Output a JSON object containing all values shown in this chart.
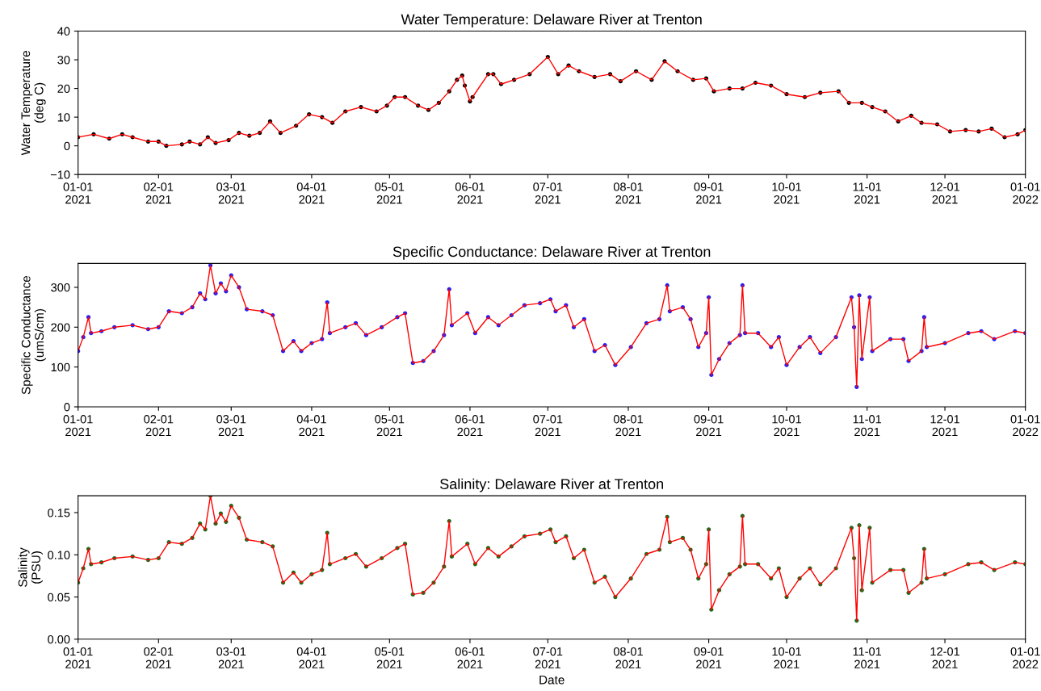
{
  "chart_data": [
    {
      "type": "line",
      "title": "Water Temperature: Delaware River at Trenton",
      "ylabel": "Water Temperature\n(deg C)",
      "ylim": [
        -10,
        40
      ],
      "yticks": [
        {
          "value": -10,
          "label": "−10"
        },
        0,
        10,
        20,
        30,
        40
      ],
      "xlim": [
        "2021-01-01",
        "2022-01-01"
      ],
      "xticks": [
        {
          "value": "2021-01-01",
          "label": "01-01\n2021"
        },
        {
          "value": "2021-02-01",
          "label": "02-01\n2021"
        },
        {
          "value": "2021-03-01",
          "label": "03-01\n2021"
        },
        {
          "value": "2021-04-01",
          "label": "04-01\n2021"
        },
        {
          "value": "2021-05-01",
          "label": "05-01\n2021"
        },
        {
          "value": "2021-06-01",
          "label": "06-01\n2021"
        },
        {
          "value": "2021-07-01",
          "label": "07-01\n2021"
        },
        {
          "value": "2021-08-01",
          "label": "08-01\n2021"
        },
        {
          "value": "2021-09-01",
          "label": "09-01\n2021"
        },
        {
          "value": "2021-10-01",
          "label": "10-01\n2021"
        },
        {
          "value": "2021-11-01",
          "label": "11-01\n2021"
        },
        {
          "value": "2021-12-01",
          "label": "12-01\n2021"
        },
        {
          "value": "2022-01-01",
          "label": "01-01\n2022"
        }
      ],
      "grid": false,
      "x": [
        "2021-01-01",
        "2021-01-07",
        "2021-01-13",
        "2021-01-18",
        "2021-01-22",
        "2021-01-28",
        "2021-02-01",
        "2021-02-04",
        "2021-02-10",
        "2021-02-13",
        "2021-02-17",
        "2021-02-20",
        "2021-02-23",
        "2021-02-28",
        "2021-03-04",
        "2021-03-08",
        "2021-03-12",
        "2021-03-16",
        "2021-03-20",
        "2021-03-26",
        "2021-03-31",
        "2021-04-05",
        "2021-04-09",
        "2021-04-14",
        "2021-04-20",
        "2021-04-26",
        "2021-04-30",
        "2021-05-03",
        "2021-05-07",
        "2021-05-12",
        "2021-05-16",
        "2021-05-20",
        "2021-05-24",
        "2021-05-27",
        "2021-05-29",
        "2021-05-30",
        "2021-06-01",
        "2021-06-02",
        "2021-06-08",
        "2021-06-10",
        "2021-06-13",
        "2021-06-18",
        "2021-06-24",
        "2021-07-01",
        "2021-07-05",
        "2021-07-09",
        "2021-07-13",
        "2021-07-19",
        "2021-07-25",
        "2021-07-29",
        "2021-08-04",
        "2021-08-10",
        "2021-08-15",
        "2021-08-20",
        "2021-08-26",
        "2021-08-31",
        "2021-09-03",
        "2021-09-09",
        "2021-09-14",
        "2021-09-19",
        "2021-09-25",
        "2021-10-01",
        "2021-10-08",
        "2021-10-14",
        "2021-10-21",
        "2021-10-25",
        "2021-10-30",
        "2021-11-03",
        "2021-11-08",
        "2021-11-13",
        "2021-11-18",
        "2021-11-22",
        "2021-11-28",
        "2021-12-03",
        "2021-12-09",
        "2021-12-14",
        "2021-12-19",
        "2021-12-24",
        "2021-12-29",
        "2022-01-01"
      ],
      "series": [
        {
          "color": "#ff0000",
          "line_style": "solid",
          "values": [
            3,
            4,
            2.5,
            4,
            3,
            1.5,
            1.5,
            0,
            0.5,
            1.5,
            0.5,
            3,
            1,
            2,
            4.5,
            3.5,
            4.5,
            8.5,
            4.5,
            7,
            11,
            10,
            8,
            12,
            13.5,
            12,
            14,
            17,
            17,
            14,
            12.5,
            15,
            19,
            23,
            24.5,
            21,
            15.5,
            17,
            25,
            25,
            21.5,
            23,
            25,
            31,
            25,
            28,
            26,
            24,
            25,
            22.5,
            26,
            23,
            29.5,
            26,
            23,
            23.5,
            19,
            20,
            20,
            22,
            21,
            18,
            17,
            18.5,
            19,
            15,
            15,
            13.5,
            12,
            8.5,
            10.5,
            8,
            7.5,
            5,
            5.5,
            5,
            6,
            3,
            4,
            5.5
          ]
        },
        {
          "type": "scatter",
          "color": "#000000",
          "marker": "circle",
          "values": [
            3,
            4,
            2.5,
            4,
            3,
            1.5,
            1.5,
            0,
            0.5,
            1.5,
            0.5,
            3,
            1,
            2,
            4.5,
            3.5,
            4.5,
            8.5,
            4.5,
            7,
            11,
            10,
            8,
            12,
            13.5,
            12,
            14,
            17,
            17,
            14,
            12.5,
            15,
            19,
            23,
            24.5,
            21,
            15.5,
            17,
            25,
            25,
            21.5,
            23,
            25,
            31,
            25,
            28,
            26,
            24,
            25,
            22.5,
            26,
            23,
            29.5,
            26,
            23,
            23.5,
            19,
            20,
            20,
            22,
            21,
            18,
            17,
            18.5,
            19,
            15,
            15,
            13.5,
            12,
            8.5,
            10.5,
            8,
            7.5,
            5,
            5.5,
            5,
            6,
            3,
            4,
            5.5
          ]
        }
      ]
    },
    {
      "type": "line",
      "title": "Specific Conductance: Delaware River at Trenton",
      "ylabel": "Specific Conductance\n(umS/cm)",
      "ylim": [
        0,
        360
      ],
      "yticks": [
        0,
        100,
        200,
        300
      ],
      "xlim": [
        "2021-01-01",
        "2022-01-01"
      ],
      "xticks": [
        {
          "value": "2021-01-01",
          "label": "01-01\n2021"
        },
        {
          "value": "2021-02-01",
          "label": "02-01\n2021"
        },
        {
          "value": "2021-03-01",
          "label": "03-01\n2021"
        },
        {
          "value": "2021-04-01",
          "label": "04-01\n2021"
        },
        {
          "value": "2021-05-01",
          "label": "05-01\n2021"
        },
        {
          "value": "2021-06-01",
          "label": "06-01\n2021"
        },
        {
          "value": "2021-07-01",
          "label": "07-01\n2021"
        },
        {
          "value": "2021-08-01",
          "label": "08-01\n2021"
        },
        {
          "value": "2021-09-01",
          "label": "09-01\n2021"
        },
        {
          "value": "2021-10-01",
          "label": "10-01\n2021"
        },
        {
          "value": "2021-11-01",
          "label": "11-01\n2021"
        },
        {
          "value": "2021-12-01",
          "label": "12-01\n2021"
        },
        {
          "value": "2022-01-01",
          "label": "01-01\n2022"
        }
      ],
      "grid": false,
      "x": [
        "2021-01-01",
        "2021-01-03",
        "2021-01-05",
        "2021-01-06",
        "2021-01-10",
        "2021-01-15",
        "2021-01-22",
        "2021-01-28",
        "2021-02-01",
        "2021-02-05",
        "2021-02-10",
        "2021-02-14",
        "2021-02-17",
        "2021-02-19",
        "2021-02-21",
        "2021-02-23",
        "2021-02-25",
        "2021-02-27",
        "2021-03-01",
        "2021-03-04",
        "2021-03-07",
        "2021-03-13",
        "2021-03-17",
        "2021-03-21",
        "2021-03-25",
        "2021-03-28",
        "2021-04-01",
        "2021-04-05",
        "2021-04-07",
        "2021-04-08",
        "2021-04-14",
        "2021-04-18",
        "2021-04-22",
        "2021-04-28",
        "2021-05-04",
        "2021-05-07",
        "2021-05-10",
        "2021-05-14",
        "2021-05-18",
        "2021-05-22",
        "2021-05-24",
        "2021-05-25",
        "2021-05-31",
        "2021-06-03",
        "2021-06-08",
        "2021-06-12",
        "2021-06-17",
        "2021-06-22",
        "2021-06-28",
        "2021-07-02",
        "2021-07-04",
        "2021-07-08",
        "2021-07-11",
        "2021-07-15",
        "2021-07-19",
        "2021-07-23",
        "2021-07-27",
        "2021-08-02",
        "2021-08-08",
        "2021-08-13",
        "2021-08-16",
        "2021-08-17",
        "2021-08-22",
        "2021-08-25",
        "2021-08-28",
        "2021-08-31",
        "2021-09-01",
        "2021-09-02",
        "2021-09-05",
        "2021-09-09",
        "2021-09-13",
        "2021-09-14",
        "2021-09-15",
        "2021-09-20",
        "2021-09-25",
        "2021-09-28",
        "2021-10-01",
        "2021-10-06",
        "2021-10-10",
        "2021-10-14",
        "2021-10-20",
        "2021-10-26",
        "2021-10-27",
        "2021-10-28",
        "2021-10-29",
        "2021-10-30",
        "2021-11-02",
        "2021-11-03",
        "2021-11-10",
        "2021-11-15",
        "2021-11-17",
        "2021-11-22",
        "2021-11-23",
        "2021-11-24",
        "2021-12-01",
        "2021-12-10",
        "2021-12-15",
        "2021-12-20",
        "2021-12-28",
        "2022-01-01"
      ],
      "series": [
        {
          "color": "#ff0000",
          "line_style": "solid",
          "values": [
            140,
            175,
            225,
            185,
            190,
            200,
            205,
            195,
            200,
            240,
            235,
            250,
            285,
            270,
            355,
            285,
            310,
            290,
            330,
            300,
            245,
            240,
            230,
            140,
            165,
            140,
            160,
            170,
            262,
            185,
            200,
            210,
            180,
            200,
            225,
            235,
            110,
            115,
            140,
            180,
            295,
            205,
            235,
            185,
            225,
            205,
            230,
            255,
            260,
            270,
            240,
            255,
            200,
            220,
            140,
            155,
            105,
            150,
            210,
            220,
            305,
            240,
            250,
            220,
            150,
            185,
            275,
            80,
            120,
            160,
            180,
            305,
            185,
            185,
            150,
            175,
            105,
            150,
            175,
            135,
            175,
            275,
            200,
            50,
            280,
            120,
            275,
            140,
            170,
            170,
            115,
            140,
            225,
            150,
            160,
            185,
            190,
            170,
            190,
            185
          ]
        },
        {
          "type": "scatter",
          "color": "#1f1fff",
          "marker": "circle",
          "values": [
            140,
            175,
            225,
            185,
            190,
            200,
            205,
            195,
            200,
            240,
            235,
            250,
            285,
            270,
            355,
            285,
            310,
            290,
            330,
            300,
            245,
            240,
            230,
            140,
            165,
            140,
            160,
            170,
            262,
            185,
            200,
            210,
            180,
            200,
            225,
            235,
            110,
            115,
            140,
            180,
            295,
            205,
            235,
            185,
            225,
            205,
            230,
            255,
            260,
            270,
            240,
            255,
            200,
            220,
            140,
            155,
            105,
            150,
            210,
            220,
            305,
            240,
            250,
            220,
            150,
            185,
            275,
            80,
            120,
            160,
            180,
            305,
            185,
            185,
            150,
            175,
            105,
            150,
            175,
            135,
            175,
            275,
            200,
            50,
            280,
            120,
            275,
            140,
            170,
            170,
            115,
            140,
            225,
            150,
            160,
            185,
            190,
            170,
            190,
            185
          ]
        }
      ]
    },
    {
      "type": "line",
      "title": "Salinity: Delaware River at Trenton",
      "ylabel": "Salinity\n(PSU)",
      "xlabel": "Date",
      "ylim": [
        0,
        0.17
      ],
      "yticks": [
        {
          "value": 0,
          "label": "0.00"
        },
        {
          "value": 0.05,
          "label": "0.05"
        },
        {
          "value": 0.1,
          "label": "0.10"
        },
        {
          "value": 0.15,
          "label": "0.15"
        }
      ],
      "xlim": [
        "2021-01-01",
        "2022-01-01"
      ],
      "xticks": [
        {
          "value": "2021-01-01",
          "label": "01-01\n2021"
        },
        {
          "value": "2021-02-01",
          "label": "02-01\n2021"
        },
        {
          "value": "2021-03-01",
          "label": "03-01\n2021"
        },
        {
          "value": "2021-04-01",
          "label": "04-01\n2021"
        },
        {
          "value": "2021-05-01",
          "label": "05-01\n2021"
        },
        {
          "value": "2021-06-01",
          "label": "06-01\n2021"
        },
        {
          "value": "2021-07-01",
          "label": "07-01\n2021"
        },
        {
          "value": "2021-08-01",
          "label": "08-01\n2021"
        },
        {
          "value": "2021-09-01",
          "label": "09-01\n2021"
        },
        {
          "value": "2021-10-01",
          "label": "10-01\n2021"
        },
        {
          "value": "2021-11-01",
          "label": "11-01\n2021"
        },
        {
          "value": "2021-12-01",
          "label": "12-01\n2021"
        },
        {
          "value": "2022-01-01",
          "label": "01-01\n2022"
        }
      ],
      "grid": false,
      "x": [
        "2021-01-01",
        "2021-01-03",
        "2021-01-05",
        "2021-01-06",
        "2021-01-10",
        "2021-01-15",
        "2021-01-22",
        "2021-01-28",
        "2021-02-01",
        "2021-02-05",
        "2021-02-10",
        "2021-02-14",
        "2021-02-17",
        "2021-02-19",
        "2021-02-21",
        "2021-02-23",
        "2021-02-25",
        "2021-02-27",
        "2021-03-01",
        "2021-03-04",
        "2021-03-07",
        "2021-03-13",
        "2021-03-17",
        "2021-03-21",
        "2021-03-25",
        "2021-03-28",
        "2021-04-01",
        "2021-04-05",
        "2021-04-07",
        "2021-04-08",
        "2021-04-14",
        "2021-04-18",
        "2021-04-22",
        "2021-04-28",
        "2021-05-04",
        "2021-05-07",
        "2021-05-10",
        "2021-05-14",
        "2021-05-18",
        "2021-05-22",
        "2021-05-24",
        "2021-05-25",
        "2021-05-31",
        "2021-06-03",
        "2021-06-08",
        "2021-06-12",
        "2021-06-17",
        "2021-06-22",
        "2021-06-28",
        "2021-07-02",
        "2021-07-04",
        "2021-07-08",
        "2021-07-11",
        "2021-07-15",
        "2021-07-19",
        "2021-07-23",
        "2021-07-27",
        "2021-08-02",
        "2021-08-08",
        "2021-08-13",
        "2021-08-16",
        "2021-08-17",
        "2021-08-22",
        "2021-08-25",
        "2021-08-28",
        "2021-08-31",
        "2021-09-01",
        "2021-09-02",
        "2021-09-05",
        "2021-09-09",
        "2021-09-13",
        "2021-09-14",
        "2021-09-15",
        "2021-09-20",
        "2021-09-25",
        "2021-09-28",
        "2021-10-01",
        "2021-10-06",
        "2021-10-10",
        "2021-10-14",
        "2021-10-20",
        "2021-10-26",
        "2021-10-27",
        "2021-10-28",
        "2021-10-29",
        "2021-10-30",
        "2021-11-02",
        "2021-11-03",
        "2021-11-10",
        "2021-11-15",
        "2021-11-17",
        "2021-11-22",
        "2021-11-23",
        "2021-11-24",
        "2021-12-01",
        "2021-12-10",
        "2021-12-15",
        "2021-12-20",
        "2021-12-28",
        "2022-01-01"
      ],
      "series": [
        {
          "color": "#ff0000",
          "line_style": "solid",
          "values": [
            0.067,
            0.084,
            0.107,
            0.089,
            0.091,
            0.096,
            0.098,
            0.094,
            0.096,
            0.115,
            0.113,
            0.12,
            0.137,
            0.13,
            0.17,
            0.137,
            0.149,
            0.139,
            0.158,
            0.144,
            0.118,
            0.115,
            0.11,
            0.067,
            0.079,
            0.067,
            0.077,
            0.082,
            0.126,
            0.089,
            0.096,
            0.101,
            0.086,
            0.096,
            0.108,
            0.113,
            0.053,
            0.055,
            0.067,
            0.086,
            0.14,
            0.098,
            0.113,
            0.089,
            0.108,
            0.098,
            0.11,
            0.122,
            0.125,
            0.13,
            0.115,
            0.122,
            0.096,
            0.106,
            0.067,
            0.074,
            0.05,
            0.072,
            0.101,
            0.106,
            0.145,
            0.115,
            0.12,
            0.106,
            0.072,
            0.089,
            0.13,
            0.035,
            0.058,
            0.077,
            0.086,
            0.146,
            0.089,
            0.089,
            0.072,
            0.084,
            0.05,
            0.072,
            0.084,
            0.065,
            0.084,
            0.132,
            0.096,
            0.022,
            0.135,
            0.058,
            0.132,
            0.067,
            0.082,
            0.082,
            0.055,
            0.067,
            0.107,
            0.072,
            0.077,
            0.089,
            0.091,
            0.082,
            0.091,
            0.089
          ]
        },
        {
          "type": "scatter",
          "color": "#1e6b1e",
          "marker": "circle",
          "values": [
            0.067,
            0.084,
            0.107,
            0.089,
            0.091,
            0.096,
            0.098,
            0.094,
            0.096,
            0.115,
            0.113,
            0.12,
            0.137,
            0.13,
            0.17,
            0.137,
            0.149,
            0.139,
            0.158,
            0.144,
            0.118,
            0.115,
            0.11,
            0.067,
            0.079,
            0.067,
            0.077,
            0.082,
            0.126,
            0.089,
            0.096,
            0.101,
            0.086,
            0.096,
            0.108,
            0.113,
            0.053,
            0.055,
            0.067,
            0.086,
            0.14,
            0.098,
            0.113,
            0.089,
            0.108,
            0.098,
            0.11,
            0.122,
            0.125,
            0.13,
            0.115,
            0.122,
            0.096,
            0.106,
            0.067,
            0.074,
            0.05,
            0.072,
            0.101,
            0.106,
            0.145,
            0.115,
            0.12,
            0.106,
            0.072,
            0.089,
            0.13,
            0.035,
            0.058,
            0.077,
            0.086,
            0.146,
            0.089,
            0.089,
            0.072,
            0.084,
            0.05,
            0.072,
            0.084,
            0.065,
            0.084,
            0.132,
            0.096,
            0.022,
            0.135,
            0.058,
            0.132,
            0.067,
            0.082,
            0.082,
            0.055,
            0.067,
            0.107,
            0.072,
            0.077,
            0.089,
            0.091,
            0.082,
            0.091,
            0.089
          ]
        }
      ]
    }
  ]
}
